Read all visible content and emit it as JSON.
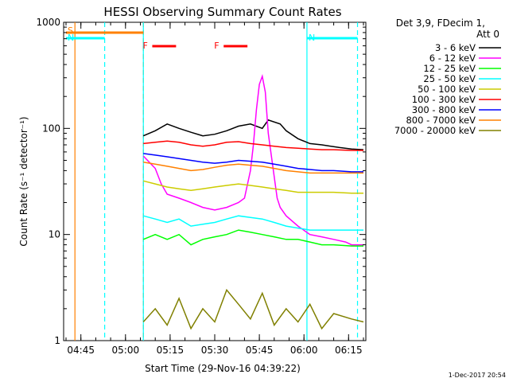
{
  "chart_data": {
    "type": "line",
    "title": "HESSI Observing Summary Count Rates",
    "xlabel": "Start Time (29-Nov-16 04:39:22)",
    "ylabel": "Count Rate (s⁻¹ detector⁻¹)",
    "y_scale": "log",
    "ylim": [
      1,
      1000
    ],
    "y_ticks": [
      "1",
      "10",
      "100",
      "1000"
    ],
    "x_ticks": [
      "04:45",
      "05:00",
      "05:15",
      "05:30",
      "05:45",
      "06:00",
      "06:15"
    ],
    "xlim_minutes_after_0440": [
      0,
      100
    ],
    "data_gap_minutes_after_0440": [
      0,
      26
    ],
    "grid": false,
    "legend_position": "top-right",
    "legend_header": [
      "Det 3,9, FDecim 1,",
      "Att 0"
    ],
    "series": [
      {
        "name": "3 - 6 keV",
        "color": "#000000",
        "points": [
          [
            26,
            85
          ],
          [
            30,
            95
          ],
          [
            34,
            110
          ],
          [
            38,
            100
          ],
          [
            42,
            92
          ],
          [
            46,
            85
          ],
          [
            50,
            88
          ],
          [
            54,
            95
          ],
          [
            58,
            105
          ],
          [
            62,
            110
          ],
          [
            66,
            100
          ],
          [
            68,
            120
          ],
          [
            72,
            110
          ],
          [
            74,
            95
          ],
          [
            78,
            80
          ],
          [
            82,
            72
          ],
          [
            86,
            70
          ],
          [
            89,
            68
          ],
          [
            92,
            66
          ],
          [
            96,
            64
          ],
          [
            100,
            63
          ]
        ]
      },
      {
        "name": "6 - 12 keV",
        "color": "#ff00ff",
        "points": [
          [
            26,
            55
          ],
          [
            28,
            48
          ],
          [
            30,
            42
          ],
          [
            32,
            30
          ],
          [
            34,
            24
          ],
          [
            38,
            22
          ],
          [
            42,
            20
          ],
          [
            46,
            18
          ],
          [
            50,
            17
          ],
          [
            54,
            18
          ],
          [
            58,
            20
          ],
          [
            60,
            22
          ],
          [
            62,
            40
          ],
          [
            63,
            70
          ],
          [
            64,
            150
          ],
          [
            65,
            260
          ],
          [
            66,
            310
          ],
          [
            67,
            220
          ],
          [
            68,
            90
          ],
          [
            70,
            35
          ],
          [
            71,
            22
          ],
          [
            72,
            18
          ],
          [
            74,
            15
          ],
          [
            78,
            12
          ],
          [
            82,
            10
          ],
          [
            86,
            9.5
          ],
          [
            90,
            9
          ],
          [
            94,
            8.5
          ],
          [
            96,
            8
          ],
          [
            100,
            8
          ]
        ]
      },
      {
        "name": "12 - 25 keV",
        "color": "#00ff00",
        "points": [
          [
            26,
            9
          ],
          [
            30,
            10
          ],
          [
            34,
            9
          ],
          [
            38,
            10
          ],
          [
            42,
            8
          ],
          [
            46,
            9
          ],
          [
            50,
            9.5
          ],
          [
            54,
            10
          ],
          [
            58,
            11
          ],
          [
            62,
            10.5
          ],
          [
            66,
            10
          ],
          [
            70,
            9.5
          ],
          [
            74,
            9
          ],
          [
            78,
            9
          ],
          [
            82,
            8.5
          ],
          [
            86,
            8
          ],
          [
            90,
            8
          ],
          [
            96,
            7.8
          ],
          [
            100,
            7.8
          ]
        ]
      },
      {
        "name": "25 - 50 keV",
        "color": "#00ffff",
        "points": [
          [
            26,
            15
          ],
          [
            30,
            14
          ],
          [
            34,
            13
          ],
          [
            38,
            14
          ],
          [
            42,
            12
          ],
          [
            46,
            12.5
          ],
          [
            50,
            13
          ],
          [
            54,
            14
          ],
          [
            58,
            15
          ],
          [
            62,
            14.5
          ],
          [
            66,
            14
          ],
          [
            70,
            13
          ],
          [
            74,
            12
          ],
          [
            78,
            11.5
          ],
          [
            82,
            11
          ],
          [
            86,
            11
          ],
          [
            90,
            11
          ],
          [
            96,
            11
          ],
          [
            100,
            11
          ]
        ]
      },
      {
        "name": "50 - 100 keV",
        "color": "#cccc00",
        "points": [
          [
            26,
            32
          ],
          [
            30,
            30
          ],
          [
            34,
            28
          ],
          [
            38,
            27
          ],
          [
            42,
            26
          ],
          [
            46,
            27
          ],
          [
            50,
            28
          ],
          [
            54,
            29
          ],
          [
            58,
            30
          ],
          [
            62,
            29
          ],
          [
            66,
            28
          ],
          [
            70,
            27
          ],
          [
            74,
            26
          ],
          [
            78,
            25
          ],
          [
            82,
            25
          ],
          [
            86,
            25
          ],
          [
            90,
            25
          ],
          [
            96,
            24.5
          ],
          [
            100,
            24.5
          ]
        ]
      },
      {
        "name": "100 - 300 keV",
        "color": "#ff0000",
        "points": [
          [
            26,
            72
          ],
          [
            30,
            74
          ],
          [
            34,
            76
          ],
          [
            38,
            74
          ],
          [
            42,
            70
          ],
          [
            46,
            68
          ],
          [
            50,
            70
          ],
          [
            54,
            74
          ],
          [
            58,
            75
          ],
          [
            62,
            72
          ],
          [
            66,
            70
          ],
          [
            70,
            68
          ],
          [
            74,
            66
          ],
          [
            78,
            65
          ],
          [
            82,
            64
          ],
          [
            86,
            63
          ],
          [
            90,
            63
          ],
          [
            96,
            62
          ],
          [
            100,
            62
          ]
        ]
      },
      {
        "name": "300 - 800 keV",
        "color": "#0000ff",
        "points": [
          [
            26,
            58
          ],
          [
            30,
            56
          ],
          [
            34,
            54
          ],
          [
            38,
            52
          ],
          [
            42,
            50
          ],
          [
            46,
            48
          ],
          [
            50,
            47
          ],
          [
            54,
            48
          ],
          [
            58,
            50
          ],
          [
            62,
            49
          ],
          [
            66,
            48
          ],
          [
            70,
            46
          ],
          [
            74,
            44
          ],
          [
            78,
            42
          ],
          [
            82,
            41
          ],
          [
            86,
            40
          ],
          [
            90,
            40
          ],
          [
            96,
            39
          ],
          [
            100,
            39
          ]
        ]
      },
      {
        "name": "800 - 7000 keV",
        "color": "#ff8000",
        "points": [
          [
            26,
            48
          ],
          [
            30,
            46
          ],
          [
            34,
            44
          ],
          [
            38,
            42
          ],
          [
            42,
            40
          ],
          [
            46,
            41
          ],
          [
            50,
            43
          ],
          [
            54,
            45
          ],
          [
            58,
            46
          ],
          [
            62,
            45
          ],
          [
            66,
            44
          ],
          [
            70,
            42
          ],
          [
            74,
            40
          ],
          [
            78,
            39
          ],
          [
            82,
            38
          ],
          [
            86,
            38
          ],
          [
            90,
            38
          ],
          [
            96,
            38
          ],
          [
            100,
            38
          ]
        ]
      },
      {
        "name": "7000 - 20000 keV",
        "color": "#808000",
        "points": [
          [
            26,
            1.5
          ],
          [
            30,
            2
          ],
          [
            34,
            1.4
          ],
          [
            38,
            2.5
          ],
          [
            42,
            1.3
          ],
          [
            46,
            2
          ],
          [
            50,
            1.5
          ],
          [
            54,
            3
          ],
          [
            58,
            2.2
          ],
          [
            62,
            1.6
          ],
          [
            66,
            2.8
          ],
          [
            70,
            1.4
          ],
          [
            74,
            2
          ],
          [
            78,
            1.5
          ],
          [
            82,
            2.2
          ],
          [
            86,
            1.3
          ],
          [
            90,
            1.8
          ],
          [
            96,
            1.6
          ],
          [
            100,
            1.5
          ]
        ]
      }
    ],
    "annotations": [
      {
        "label": "S",
        "color": "#ff8000",
        "t_start": 0,
        "t_end": 26
      },
      {
        "label": "N",
        "color": "#00ffff",
        "t_start": 0,
        "t_end": 13
      },
      {
        "label": "N",
        "color": "#00ffff",
        "t_start": 81,
        "t_end": 98
      },
      {
        "label": "F",
        "color": "#ff0000",
        "t_start": 29,
        "t_end": 37
      },
      {
        "label": "F",
        "color": "#ff0000",
        "t_start": 53,
        "t_end": 61
      }
    ],
    "event_markers": [
      {
        "color": "#ff8000",
        "style": "solid",
        "t": 3
      },
      {
        "color": "#ff8000",
        "style": "dashed",
        "t": 26
      },
      {
        "color": "#00ffff",
        "style": "dashed",
        "t": 13
      },
      {
        "color": "#00ffff",
        "style": "solid",
        "t": 26
      },
      {
        "color": "#00ffff",
        "style": "solid",
        "t": 81
      },
      {
        "color": "#00ffff",
        "style": "dashed",
        "t": 98
      }
    ]
  },
  "footer_stamp": "1-Dec-2017 20:54"
}
